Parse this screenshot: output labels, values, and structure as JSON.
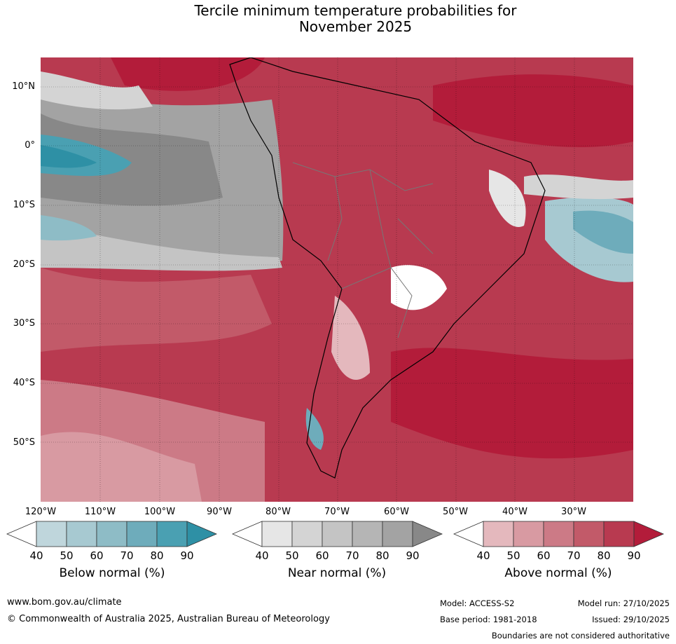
{
  "title": {
    "line1": "Tercile minimum temperature probabilities for",
    "line2": "November 2025"
  },
  "lat_labels": [
    "10°N",
    "0°",
    "10°S",
    "20°S",
    "30°S",
    "40°S",
    "50°S"
  ],
  "lon_labels": [
    "120°W",
    "110°W",
    "100°W",
    "90°W",
    "80°W",
    "70°W",
    "60°W",
    "50°W",
    "40°W",
    "30°W"
  ],
  "legend": {
    "below": {
      "title": "Below normal (%)",
      "ticks": [
        "40",
        "50",
        "60",
        "70",
        "80",
        "90"
      ],
      "colors": [
        "#ffffff",
        "#bfd6dc",
        "#a7c9d1",
        "#8ebcc6",
        "#6eacbb",
        "#4aa0b2",
        "#2e90a5"
      ]
    },
    "near": {
      "title": "Near normal (%)",
      "ticks": [
        "40",
        "50",
        "60",
        "70",
        "80",
        "90"
      ],
      "colors": [
        "#ffffff",
        "#e6e6e6",
        "#d4d4d4",
        "#c4c4c4",
        "#b5b5b5",
        "#a3a3a3",
        "#888888"
      ]
    },
    "above": {
      "title": "Above normal (%)",
      "ticks": [
        "40",
        "50",
        "60",
        "70",
        "80",
        "90"
      ],
      "colors": [
        "#ffffff",
        "#e4b8bd",
        "#d89aa2",
        "#cc7a86",
        "#c25a69",
        "#b83a50",
        "#b31c3a"
      ]
    }
  },
  "footer": {
    "website": "www.bom.gov.au/climate",
    "copyright": "© Commonwealth of Australia 2025, Australian Bureau of Meteorology",
    "model": "Model: ACCESS-S2",
    "model_run": "Model run: 27/10/2025",
    "base_period": "Base period: 1981-2018",
    "issued": "Issued: 29/10/2025",
    "disclaimer": "Boundaries are not considered authoritative"
  }
}
